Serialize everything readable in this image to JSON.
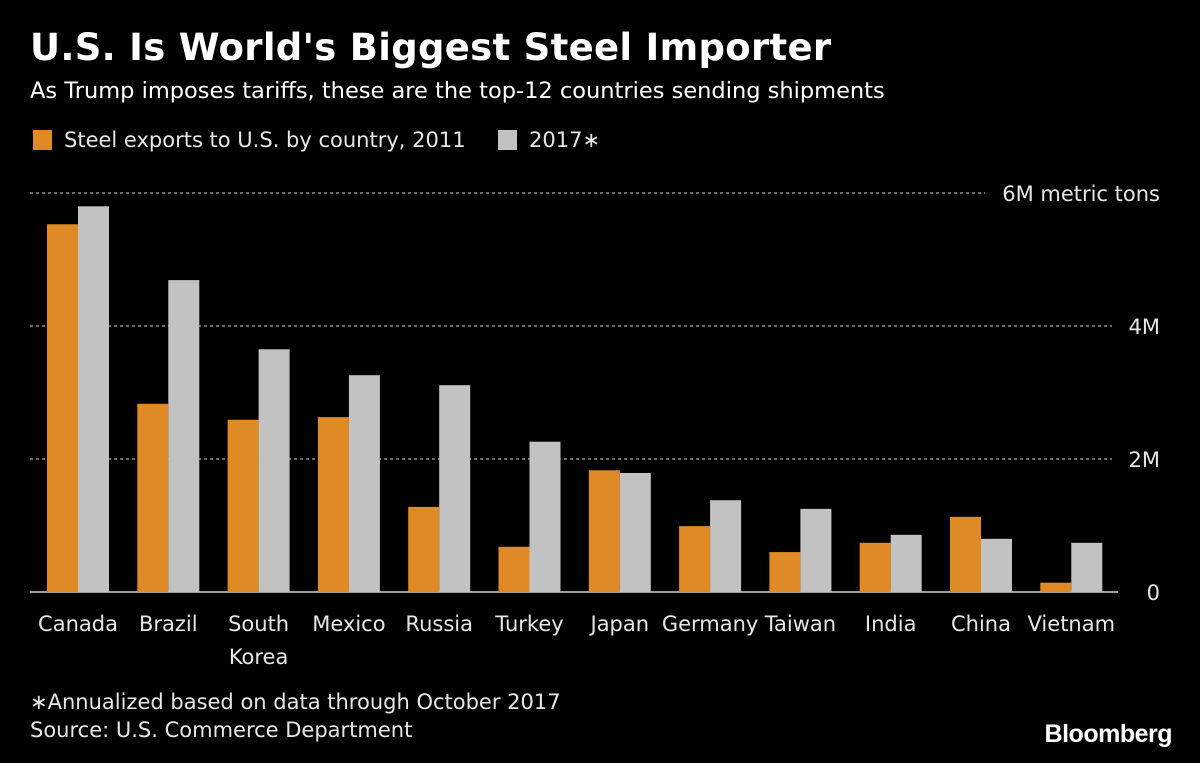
{
  "title": "U.S. Is World's Biggest Steel Importer",
  "subtitle": "As Trump imposes tariffs, these are the top-12 countries sending shipments",
  "footnote": "∗Annualized based on data through October 2017",
  "source": "Source: U.S. Commerce Department",
  "logo": "Bloomberg",
  "chart_data": {
    "type": "bar",
    "categories": [
      "Canada",
      "Brazil",
      "South Korea",
      "Mexico",
      "Russia",
      "Turkey",
      "Japan",
      "Germany",
      "Taiwan",
      "India",
      "China",
      "Vietnam"
    ],
    "category_labels": [
      [
        "Canada"
      ],
      [
        "Brazil"
      ],
      [
        "South",
        "Korea"
      ],
      [
        "Mexico"
      ],
      [
        "Russia"
      ],
      [
        "Turkey"
      ],
      [
        "Japan"
      ],
      [
        "Germany"
      ],
      [
        "Taiwan"
      ],
      [
        "India"
      ],
      [
        "China"
      ],
      [
        "Vietnam"
      ]
    ],
    "series": [
      {
        "name": "Steel exports to U.S. by country, 2011",
        "color": "#e08a26",
        "values": [
          5.53,
          2.83,
          2.59,
          2.63,
          1.28,
          0.68,
          1.83,
          0.99,
          0.6,
          0.74,
          1.13,
          0.14
        ]
      },
      {
        "name": "2017∗",
        "color": "#c2c2c2",
        "values": [
          5.8,
          4.69,
          3.65,
          3.26,
          3.11,
          2.26,
          1.79,
          1.38,
          1.25,
          0.86,
          0.8,
          0.74
        ]
      }
    ],
    "unit": "million metric tons",
    "ylim": [
      0,
      6
    ],
    "yticks": [
      0,
      2,
      4,
      6
    ],
    "ytick_labels": [
      "0",
      "2M",
      "4M",
      "6M metric tons"
    ],
    "grid": true,
    "legend": "top-left"
  }
}
